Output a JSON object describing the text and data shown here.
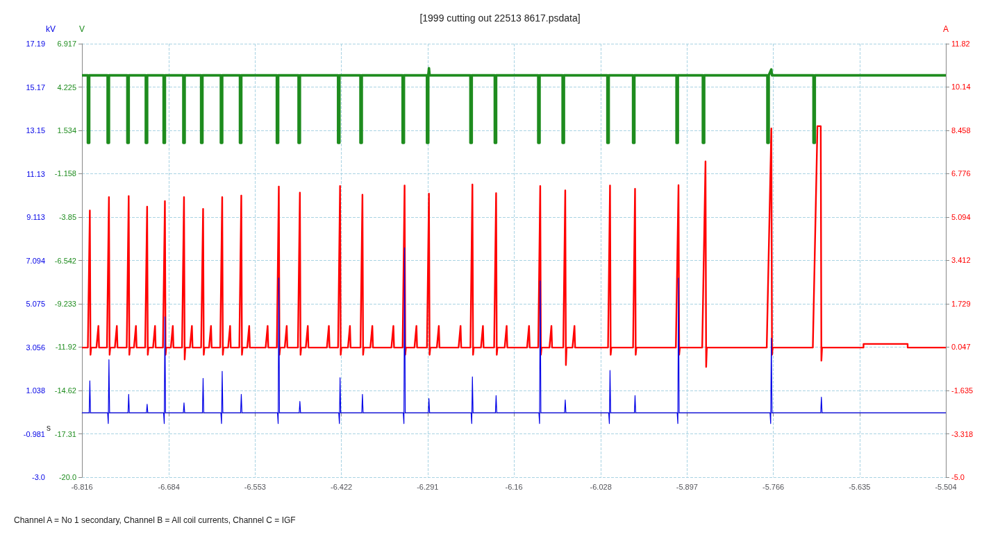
{
  "chart_data": {
    "type": "line",
    "title": "[1999 cutting out 22513 8617.psdata]",
    "xlabel": "s",
    "ylabel": "kV",
    "y2label": "A",
    "y3label": "V",
    "annotations": [
      "Channel A = No 1 secondary, Channel B = All coil currents, Channel C = IGF"
    ],
    "xlim": [
      -6.816,
      -5.504
    ],
    "xticks": [
      -6.816,
      -6.684,
      -6.553,
      -6.422,
      -6.291,
      -6.16,
      -6.028,
      -5.897,
      -5.766,
      -5.635,
      -5.504
    ],
    "ylim": [
      -3.0,
      17.19
    ],
    "yticks": [
      {
        "value": -3,
        "label": "-3.0"
      },
      -0.981,
      1.038,
      3.056,
      5.075,
      7.094,
      9.113,
      11.13,
      13.15,
      15.17,
      17.19
    ],
    "y2lim": [
      -5.0,
      11.82
    ],
    "y2ticks": [
      {
        "value": -5,
        "label": "-5.0"
      },
      -3.318,
      -1.635,
      0.047,
      1.729,
      3.412,
      5.094,
      6.776,
      8.458,
      10.14,
      11.82
    ],
    "y3lim": [
      -20.0,
      6.917
    ],
    "y3ticks": [
      {
        "value": -20,
        "label": "-20.0"
      },
      -17.31,
      -14.62,
      -11.92,
      -9.233,
      -6.542,
      -3.85,
      -1.158,
      1.534,
      4.225,
      6.917
    ],
    "grid": true,
    "marker": "none",
    "series": [
      {
        "color": "#1e8c1e",
        "axis": "y3",
        "x": [
          -6.816,
          -6.807,
          -6.807,
          -6.805,
          -6.805,
          -6.777,
          -6.777,
          -6.775,
          -6.775,
          -6.747,
          -6.747,
          -6.745,
          -6.745,
          -6.719,
          -6.719,
          -6.717,
          -6.717,
          -6.692,
          -6.692,
          -6.69,
          -6.69,
          -6.662,
          -6.662,
          -6.66,
          -6.66,
          -6.635,
          -6.635,
          -6.633,
          -6.633,
          -6.605,
          -6.605,
          -6.603,
          -6.603,
          -6.576,
          -6.576,
          -6.574,
          -6.574,
          -6.52,
          -6.52,
          -6.518,
          -6.518,
          -6.487,
          -6.487,
          -6.485,
          -6.485,
          -6.427,
          -6.427,
          -6.425,
          -6.425,
          -6.393,
          -6.393,
          -6.391,
          -6.391,
          -6.329,
          -6.329,
          -6.327,
          -6.327,
          -6.292,
          -6.292,
          -6.29,
          -6.29,
          -6.289,
          -6.288,
          -6.226,
          -6.226,
          -6.224,
          -6.224,
          -6.189,
          -6.189,
          -6.187,
          -6.187,
          -6.123,
          -6.123,
          -6.121,
          -6.121,
          -6.086,
          -6.086,
          -6.084,
          -6.084,
          -6.018,
          -6.018,
          -6.016,
          -6.016,
          -5.979,
          -5.979,
          -5.977,
          -5.977,
          -5.913,
          -5.913,
          -5.911,
          -5.911,
          -5.873,
          -5.873,
          -5.871,
          -5.871,
          -5.775,
          -5.775,
          -5.773,
          -5.773,
          -5.769,
          -5.768,
          -5.705,
          -5.705,
          -5.703,
          -5.703,
          -5.504
        ],
        "values": [
          4.95,
          4.95,
          0.76,
          0.76,
          4.95,
          4.95,
          0.76,
          0.76,
          4.95,
          4.95,
          0.76,
          0.76,
          4.95,
          4.95,
          0.76,
          0.76,
          4.95,
          4.95,
          0.76,
          0.76,
          4.95,
          4.95,
          0.76,
          0.76,
          4.95,
          4.95,
          0.76,
          0.76,
          4.95,
          4.95,
          0.76,
          0.76,
          4.95,
          4.95,
          0.76,
          0.76,
          4.95,
          4.95,
          0.76,
          0.76,
          4.95,
          4.95,
          0.76,
          0.76,
          4.95,
          4.95,
          0.76,
          0.76,
          4.95,
          4.95,
          0.76,
          0.76,
          4.95,
          4.95,
          0.76,
          0.76,
          4.95,
          4.95,
          0.76,
          0.76,
          4.95,
          5.4,
          4.95,
          4.95,
          0.76,
          0.76,
          4.95,
          4.95,
          0.76,
          0.76,
          4.95,
          4.95,
          0.76,
          0.76,
          4.95,
          4.95,
          0.76,
          0.76,
          4.95,
          4.95,
          0.76,
          0.76,
          4.95,
          4.95,
          0.76,
          0.76,
          4.95,
          4.95,
          0.76,
          0.76,
          4.95,
          4.95,
          0.76,
          0.76,
          4.95,
          4.95,
          0.76,
          0.76,
          4.95,
          5.32,
          4.95,
          4.95,
          0.76,
          0.76,
          4.95,
          4.95
        ]
      },
      {
        "color": "#ff0000",
        "axis": "y2",
        "x": [
          -6.816,
          -6.807,
          -6.804,
          -6.803,
          -6.802,
          -6.794,
          -6.791,
          -6.79,
          -6.778,
          -6.775,
          -6.774,
          -6.773,
          -6.766,
          -6.763,
          -6.762,
          -6.748,
          -6.745,
          -6.744,
          -6.743,
          -6.737,
          -6.734,
          -6.733,
          -6.72,
          -6.717,
          -6.716,
          -6.715,
          -6.708,
          -6.705,
          -6.704,
          -6.693,
          -6.69,
          -6.689,
          -6.688,
          -6.681,
          -6.678,
          -6.677,
          -6.664,
          -6.661,
          -6.66,
          -6.659,
          -6.652,
          -6.649,
          -6.648,
          -6.635,
          -6.632,
          -6.631,
          -6.63,
          -6.623,
          -6.62,
          -6.619,
          -6.606,
          -6.603,
          -6.602,
          -6.601,
          -6.594,
          -6.591,
          -6.59,
          -6.577,
          -6.574,
          -6.573,
          -6.572,
          -6.565,
          -6.562,
          -6.561,
          -6.537,
          -6.534,
          -6.533,
          -6.52,
          -6.517,
          -6.516,
          -6.515,
          -6.508,
          -6.505,
          -6.504,
          -6.488,
          -6.485,
          -6.484,
          -6.483,
          -6.476,
          -6.473,
          -6.472,
          -6.444,
          -6.441,
          -6.44,
          -6.427,
          -6.424,
          -6.423,
          -6.422,
          -6.412,
          -6.409,
          -6.408,
          -6.393,
          -6.39,
          -6.389,
          -6.388,
          -6.378,
          -6.375,
          -6.374,
          -6.346,
          -6.343,
          -6.342,
          -6.329,
          -6.326,
          -6.325,
          -6.324,
          -6.311,
          -6.308,
          -6.307,
          -6.292,
          -6.289,
          -6.288,
          -6.287,
          -6.277,
          -6.274,
          -6.273,
          -6.244,
          -6.241,
          -6.24,
          -6.226,
          -6.223,
          -6.222,
          -6.221,
          -6.21,
          -6.207,
          -6.206,
          -6.19,
          -6.187,
          -6.186,
          -6.185,
          -6.174,
          -6.171,
          -6.17,
          -6.14,
          -6.137,
          -6.136,
          -6.123,
          -6.12,
          -6.119,
          -6.118,
          -6.106,
          -6.103,
          -6.102,
          -6.085,
          -6.082,
          -6.081,
          -6.08,
          -6.071,
          -6.068,
          -6.067,
          -6.017,
          -6.014,
          -6.013,
          -6.012,
          -5.979,
          -5.976,
          -5.975,
          -5.974,
          -5.914,
          -5.91,
          -5.909,
          -5.908,
          -5.874,
          -5.869,
          -5.868,
          -5.867,
          -5.776,
          -5.769,
          -5.768,
          -5.767,
          -5.706,
          -5.699,
          -5.694,
          -5.693,
          -5.692,
          -5.629,
          -5.629,
          -5.562,
          -5.562,
          -5.504
        ],
        "values": [
          0.03,
          0.03,
          5.35,
          -0.25,
          0.03,
          0.03,
          0.87,
          0.03,
          0.03,
          5.87,
          -0.25,
          0.03,
          0.03,
          0.87,
          0.03,
          0.03,
          5.91,
          -0.25,
          0.03,
          0.03,
          0.87,
          0.03,
          0.03,
          5.5,
          -0.25,
          0.03,
          0.03,
          0.87,
          0.03,
          0.03,
          5.71,
          -0.25,
          0.03,
          0.03,
          0.87,
          0.03,
          0.03,
          5.87,
          -0.43,
          0.03,
          0.03,
          0.87,
          0.03,
          0.03,
          5.41,
          -0.25,
          0.03,
          0.03,
          0.87,
          0.03,
          0.03,
          5.87,
          -0.25,
          0.03,
          0.03,
          0.87,
          0.03,
          0.03,
          5.93,
          -0.25,
          0.03,
          0.03,
          0.87,
          0.03,
          0.03,
          0.87,
          0.03,
          0.03,
          6.28,
          -0.25,
          0.03,
          0.03,
          0.87,
          0.03,
          0.03,
          6.04,
          -0.25,
          0.03,
          0.03,
          0.87,
          0.03,
          0.03,
          0.87,
          0.03,
          0.03,
          6.3,
          -0.25,
          0.03,
          0.03,
          0.87,
          0.03,
          0.03,
          5.96,
          -0.25,
          0.03,
          0.03,
          0.87,
          0.03,
          0.03,
          0.87,
          0.03,
          0.03,
          6.32,
          -0.25,
          0.03,
          0.03,
          0.87,
          0.03,
          0.03,
          6.0,
          -0.25,
          0.03,
          0.03,
          0.87,
          0.03,
          0.03,
          0.87,
          0.03,
          0.03,
          6.36,
          -0.25,
          0.03,
          0.03,
          0.87,
          0.03,
          0.03,
          6.02,
          -0.25,
          0.03,
          0.03,
          0.87,
          0.03,
          0.03,
          0.87,
          0.03,
          0.03,
          6.3,
          -0.25,
          0.03,
          0.03,
          0.87,
          0.03,
          0.03,
          6.13,
          -0.65,
          0.03,
          0.03,
          0.87,
          0.03,
          0.03,
          6.32,
          -0.25,
          0.03,
          0.03,
          6.19,
          -0.25,
          0.03,
          0.03,
          6.33,
          -0.25,
          0.03,
          0.03,
          7.25,
          -0.72,
          0.03,
          0.03,
          8.53,
          -0.25,
          0.03,
          0.03,
          8.62,
          8.62,
          -0.48,
          0.03,
          0.03,
          0.17,
          0.17,
          0.03,
          0.03
        ]
      },
      {
        "color": "#0000e6",
        "axis": "y",
        "x": [
          -6.816,
          -6.805,
          -6.804,
          -6.803,
          -6.777,
          -6.776,
          -6.775,
          -6.774,
          -6.746,
          -6.745,
          -6.744,
          -6.718,
          -6.717,
          -6.716,
          -6.692,
          -6.691,
          -6.69,
          -6.689,
          -6.662,
          -6.661,
          -6.66,
          -6.633,
          -6.632,
          -6.631,
          -6.605,
          -6.604,
          -6.603,
          -6.602,
          -6.575,
          -6.574,
          -6.573,
          -6.519,
          -6.518,
          -6.517,
          -6.516,
          -6.486,
          -6.485,
          -6.484,
          -6.426,
          -6.425,
          -6.424,
          -6.423,
          -6.391,
          -6.39,
          -6.389,
          -6.328,
          -6.327,
          -6.326,
          -6.325,
          -6.29,
          -6.289,
          -6.288,
          -6.225,
          -6.224,
          -6.223,
          -6.222,
          -6.188,
          -6.187,
          -6.186,
          -6.122,
          -6.121,
          -6.12,
          -6.119,
          -6.083,
          -6.082,
          -6.081,
          -6.016,
          -6.015,
          -6.014,
          -6.013,
          -5.977,
          -5.976,
          -5.975,
          -5.912,
          -5.911,
          -5.91,
          -5.909,
          -5.771,
          -5.77,
          -5.769,
          -5.768,
          -5.694,
          -5.693,
          -5.692,
          -5.504
        ],
        "values": [
          0,
          0,
          1.49,
          0,
          0,
          -0.5,
          2.47,
          0,
          0,
          0.86,
          0,
          0,
          0.4,
          0,
          0,
          -0.5,
          4.47,
          0,
          0,
          0.46,
          0,
          0,
          1.6,
          0,
          0,
          -0.5,
          1.93,
          0,
          0,
          0.86,
          0,
          0,
          -0.5,
          6.28,
          0,
          0,
          0.53,
          0,
          0,
          -0.5,
          1.63,
          0,
          0,
          0.86,
          0,
          0,
          -0.5,
          7.68,
          0,
          0,
          0.66,
          0,
          0,
          -0.5,
          1.67,
          0,
          0,
          0.8,
          0,
          0,
          -0.5,
          6.15,
          0,
          0,
          0.6,
          0,
          0,
          -0.5,
          1.97,
          0,
          0,
          0.8,
          0,
          0,
          -0.5,
          6.28,
          0,
          0,
          -0.5,
          3.47,
          0,
          0,
          0.73,
          0,
          0
        ]
      }
    ]
  }
}
